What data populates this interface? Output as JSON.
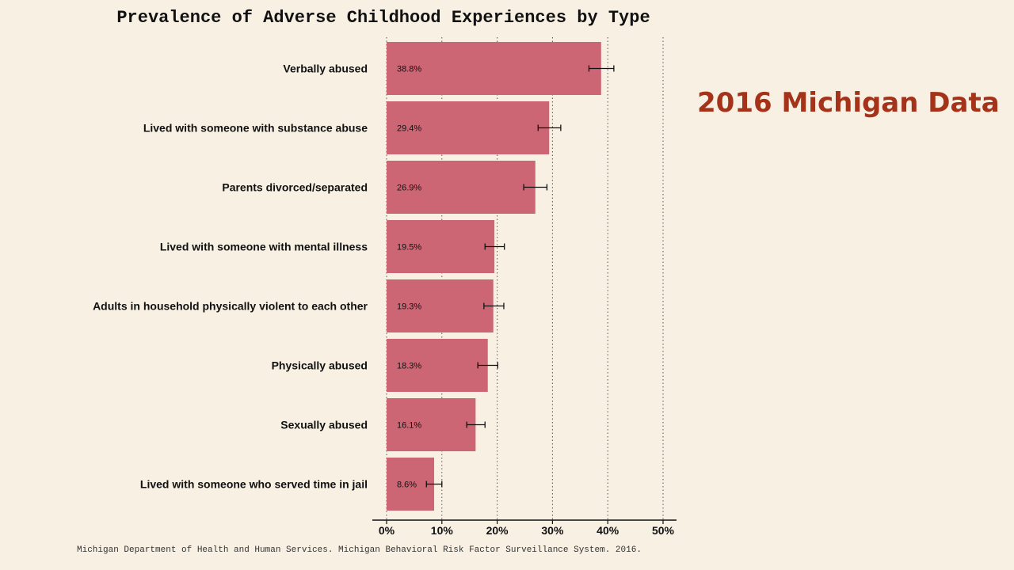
{
  "title": "Prevalence of Adverse Childhood Experiences by Type",
  "side_title": "2016 Michigan Data",
  "source": "Michigan Department of Health and Human Services. Michigan Behavioral Risk Factor Surveillance System. 2016.",
  "colors": {
    "bar": "#cc6674",
    "background": "#f8f0e3",
    "side_title": "#a4331a"
  },
  "chart_data": {
    "type": "bar",
    "orientation": "horizontal",
    "title": "Prevalence of Adverse Childhood Experiences by Type",
    "categories": [
      "Verbally abused",
      "Lived with someone with substance abuse",
      "Parents divorced/separated",
      "Lived with someone with mental illness",
      "Adults in household physically violent to each other",
      "Physically abused",
      "Sexually abused",
      "Lived with someone who served time in jail"
    ],
    "values": [
      38.8,
      29.4,
      26.9,
      19.5,
      19.3,
      18.3,
      16.1,
      8.6
    ],
    "data_labels": [
      "38.8%",
      "29.4%",
      "26.9%",
      "19.5%",
      "19.3%",
      "18.3%",
      "16.1%",
      "8.6%"
    ],
    "ci_lower": [
      36.6,
      27.4,
      24.8,
      17.8,
      17.6,
      16.5,
      14.5,
      7.2
    ],
    "ci_upper": [
      41.1,
      31.5,
      29.0,
      21.3,
      21.2,
      20.1,
      17.8,
      10.0
    ],
    "xlim": [
      0,
      50
    ],
    "ticks": [
      0,
      10,
      20,
      30,
      40,
      50
    ],
    "tick_labels": [
      "0%",
      "10%",
      "20%",
      "30%",
      "40%",
      "50%"
    ],
    "grid": "vertical dotted",
    "xlabel": "",
    "ylabel": ""
  }
}
